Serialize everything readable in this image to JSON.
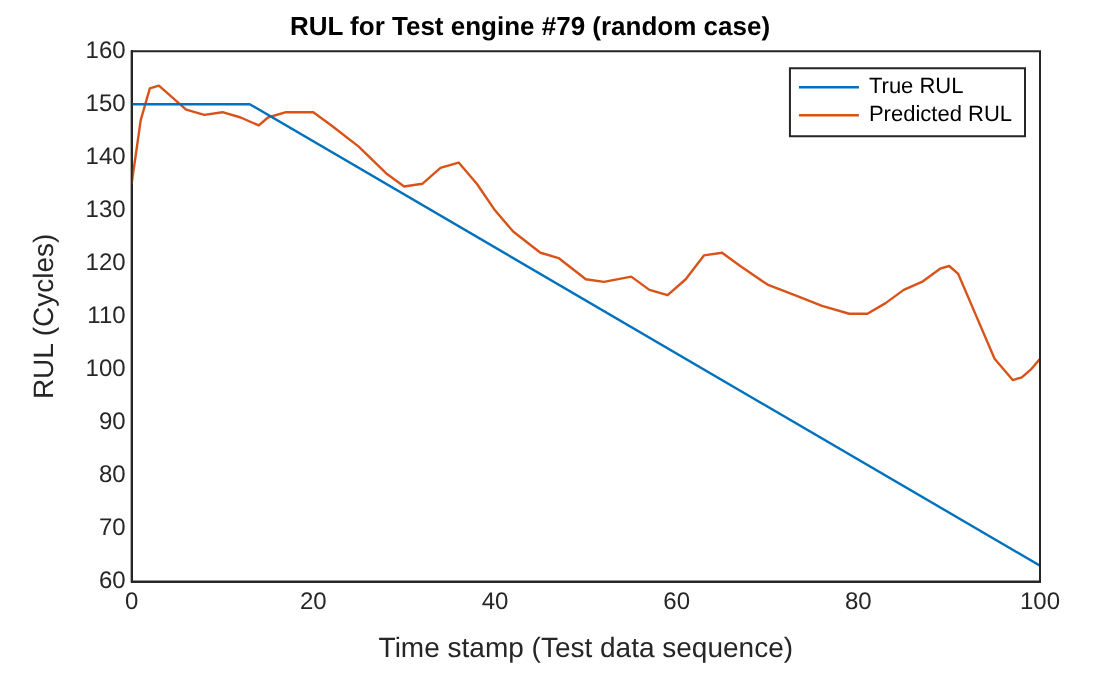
{
  "chart_data": {
    "type": "line",
    "title": "RUL for Test engine #79 (random case)",
    "xlabel": "Time stamp (Test data sequence)",
    "ylabel": "RUL (Cycles)",
    "xlim": [
      0,
      100
    ],
    "xticks": [
      0,
      20,
      40,
      60,
      80,
      100
    ],
    "ylim": [
      60,
      160
    ],
    "yticks": [
      60,
      70,
      80,
      90,
      100,
      110,
      120,
      130,
      140,
      150,
      160
    ],
    "legend": "top right",
    "grid": false,
    "series": [
      {
        "name": "True RUL",
        "color": "#0072bd",
        "x": [
          0,
          13,
          100
        ],
        "values": [
          150,
          150,
          63
        ]
      },
      {
        "name": "Predicted RUL",
        "color": "#d95319",
        "x": [
          0,
          1,
          2,
          3,
          4,
          6,
          8,
          10,
          12,
          14,
          15,
          17,
          20,
          22,
          25,
          28,
          30,
          32,
          34,
          36,
          38,
          40,
          42,
          45,
          47,
          50,
          52,
          55,
          57,
          59,
          61,
          63,
          65,
          67,
          70,
          73,
          76,
          79,
          81,
          83,
          85,
          87,
          89,
          90,
          91,
          93,
          95,
          97,
          98,
          99,
          100
        ],
        "values": [
          135,
          147,
          153,
          153.5,
          152,
          149,
          148,
          148.5,
          147.5,
          146,
          147.5,
          148.5,
          148.5,
          146,
          142,
          137,
          134.5,
          135,
          138,
          139,
          135,
          130,
          126,
          122,
          121,
          117,
          116.5,
          117.5,
          115,
          114,
          117,
          121.5,
          122,
          119.5,
          116,
          114,
          112,
          110.5,
          110.5,
          112.5,
          115,
          116.5,
          119,
          119.5,
          118,
          110,
          102,
          98,
          98.5,
          100,
          102
        ]
      }
    ]
  }
}
